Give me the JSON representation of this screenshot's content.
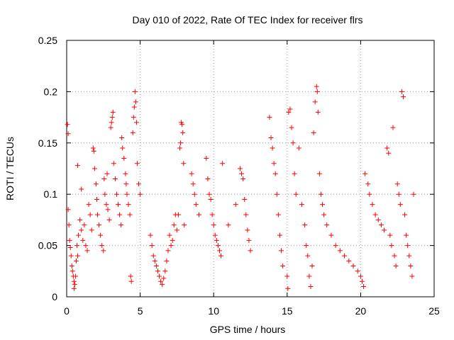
{
  "chart_data": {
    "type": "scatter",
    "title": "Day 010 of 2022, Rate Of TEC Index for receiver flrs",
    "xlabel": "GPS time / hours",
    "ylabel": "ROTI / TECUs",
    "xlim": [
      0,
      25
    ],
    "ylim": [
      0,
      0.25
    ],
    "xticks": [
      0,
      5,
      10,
      15,
      20,
      25
    ],
    "xtick_labels": [
      "0",
      "5",
      "10",
      "15",
      "20",
      "25"
    ],
    "yticks": [
      0,
      0.05,
      0.1,
      0.15,
      0.2,
      0.25
    ],
    "ytick_labels": [
      "0",
      "0.05",
      "0.1",
      "0.15",
      "0.2",
      "0.25"
    ],
    "grid": true,
    "marker": "plus",
    "color": "#ff0000",
    "series": [
      {
        "name": "ROTI",
        "points": [
          [
            0.05,
            0.168
          ],
          [
            0.1,
            0.159
          ],
          [
            0.1,
            0.085
          ],
          [
            0.15,
            0.07
          ],
          [
            0.2,
            0.055
          ],
          [
            0.25,
            0.048
          ],
          [
            0.3,
            0.04
          ],
          [
            0.35,
            0.03
          ],
          [
            0.4,
            0.025
          ],
          [
            0.45,
            0.02
          ],
          [
            0.5,
            0.015
          ],
          [
            0.5,
            0.008
          ],
          [
            0.55,
            0.012
          ],
          [
            0.6,
            0.02
          ],
          [
            0.65,
            0.035
          ],
          [
            0.7,
            0.05
          ],
          [
            0.75,
            0.04
          ],
          [
            0.75,
            0.128
          ],
          [
            0.8,
            0.06
          ],
          [
            0.9,
            0.075
          ],
          [
            1.0,
            0.065
          ],
          [
            1.0,
            0.105
          ],
          [
            1.1,
            0.055
          ],
          [
            1.2,
            0.07
          ],
          [
            1.3,
            0.05
          ],
          [
            1.4,
            0.045
          ],
          [
            1.5,
            0.09
          ],
          [
            1.6,
            0.08
          ],
          [
            1.7,
            0.065
          ],
          [
            1.8,
            0.145
          ],
          [
            1.85,
            0.142
          ],
          [
            1.9,
            0.125
          ],
          [
            2.0,
            0.11
          ],
          [
            2.05,
            0.095
          ],
          [
            2.1,
            0.08
          ],
          [
            2.2,
            0.07
          ],
          [
            2.3,
            0.06
          ],
          [
            2.4,
            0.05
          ],
          [
            2.5,
            0.045
          ],
          [
            2.55,
            0.115
          ],
          [
            2.6,
            0.1
          ],
          [
            2.7,
            0.09
          ],
          [
            2.75,
            0.12
          ],
          [
            2.8,
            0.085
          ],
          [
            2.9,
            0.075
          ],
          [
            3.0,
            0.165
          ],
          [
            3.05,
            0.17
          ],
          [
            3.1,
            0.175
          ],
          [
            3.15,
            0.18
          ],
          [
            3.2,
            0.13
          ],
          [
            3.3,
            0.115
          ],
          [
            3.4,
            0.1
          ],
          [
            3.5,
            0.09
          ],
          [
            3.6,
            0.08
          ],
          [
            3.7,
            0.07
          ],
          [
            3.75,
            0.155
          ],
          [
            3.8,
            0.145
          ],
          [
            3.9,
            0.135
          ],
          [
            4.0,
            0.12
          ],
          [
            4.05,
            0.11
          ],
          [
            4.1,
            0.1
          ],
          [
            4.2,
            0.09
          ],
          [
            4.3,
            0.08
          ],
          [
            4.35,
            0.02
          ],
          [
            4.4,
            0.015
          ],
          [
            4.5,
            0.16
          ],
          [
            4.55,
            0.175
          ],
          [
            4.6,
            0.185
          ],
          [
            4.65,
            0.2
          ],
          [
            4.7,
            0.19
          ],
          [
            4.75,
            0.17
          ],
          [
            4.8,
            0.13
          ],
          [
            4.9,
            0.11
          ],
          [
            5.0,
            0.1
          ],
          [
            5.7,
            0.06
          ],
          [
            5.8,
            0.05
          ],
          [
            5.9,
            0.04
          ],
          [
            6.0,
            0.035
          ],
          [
            6.1,
            0.03
          ],
          [
            6.2,
            0.025
          ],
          [
            6.3,
            0.02
          ],
          [
            6.4,
            0.015
          ],
          [
            6.5,
            0.012
          ],
          [
            6.6,
            0.018
          ],
          [
            6.7,
            0.025
          ],
          [
            6.8,
            0.035
          ],
          [
            6.9,
            0.045
          ],
          [
            7.0,
            0.06
          ],
          [
            7.1,
            0.05
          ],
          [
            7.2,
            0.055
          ],
          [
            7.3,
            0.07
          ],
          [
            7.4,
            0.08
          ],
          [
            7.5,
            0.065
          ],
          [
            7.6,
            0.08
          ],
          [
            7.7,
            0.145
          ],
          [
            7.75,
            0.15
          ],
          [
            7.8,
            0.17
          ],
          [
            7.85,
            0.168
          ],
          [
            7.9,
            0.16
          ],
          [
            7.95,
            0.13
          ],
          [
            8.0,
            0.07
          ],
          [
            8.5,
            0.12
          ],
          [
            8.6,
            0.11
          ],
          [
            8.7,
            0.1
          ],
          [
            8.8,
            0.09
          ],
          [
            9.0,
            0.08
          ],
          [
            9.5,
            0.135
          ],
          [
            9.6,
            0.115
          ],
          [
            9.7,
            0.1
          ],
          [
            9.8,
            0.095
          ],
          [
            9.9,
            0.08
          ],
          [
            10.0,
            0.07
          ],
          [
            10.1,
            0.06
          ],
          [
            10.2,
            0.055
          ],
          [
            10.3,
            0.05
          ],
          [
            10.4,
            0.045
          ],
          [
            10.5,
            0.04
          ],
          [
            10.6,
            0.13
          ],
          [
            11.0,
            0.07
          ],
          [
            11.5,
            0.09
          ],
          [
            11.8,
            0.125
          ],
          [
            11.9,
            0.12
          ],
          [
            12.0,
            0.115
          ],
          [
            12.1,
            0.095
          ],
          [
            12.2,
            0.08
          ],
          [
            12.3,
            0.065
          ],
          [
            12.4,
            0.055
          ],
          [
            12.5,
            0.045
          ],
          [
            13.8,
            0.175
          ],
          [
            13.9,
            0.155
          ],
          [
            14.0,
            0.145
          ],
          [
            14.1,
            0.13
          ],
          [
            14.2,
            0.12
          ],
          [
            14.3,
            0.1
          ],
          [
            14.4,
            0.08
          ],
          [
            14.5,
            0.06
          ],
          [
            14.6,
            0.045
          ],
          [
            14.7,
            0.03
          ],
          [
            15.0,
            0.02
          ],
          [
            15.05,
            0.008
          ],
          [
            15.1,
            0.18
          ],
          [
            15.2,
            0.183
          ],
          [
            15.3,
            0.165
          ],
          [
            15.4,
            0.15
          ],
          [
            15.5,
            0.12
          ],
          [
            15.6,
            0.1
          ],
          [
            15.8,
            0.145
          ],
          [
            16.0,
            0.09
          ],
          [
            16.2,
            0.07
          ],
          [
            16.3,
            0.05
          ],
          [
            16.4,
            0.04
          ],
          [
            16.5,
            0.02
          ],
          [
            16.6,
            0.01
          ],
          [
            16.7,
            0.03
          ],
          [
            16.8,
            0.16
          ],
          [
            16.9,
            0.19
          ],
          [
            17.0,
            0.205
          ],
          [
            17.05,
            0.2
          ],
          [
            17.1,
            0.18
          ],
          [
            17.2,
            0.12
          ],
          [
            17.3,
            0.1
          ],
          [
            17.4,
            0.09
          ],
          [
            17.5,
            0.08
          ],
          [
            17.7,
            0.07
          ],
          [
            18.0,
            0.06
          ],
          [
            18.3,
            0.05
          ],
          [
            18.6,
            0.045
          ],
          [
            18.9,
            0.04
          ],
          [
            19.2,
            0.035
          ],
          [
            19.5,
            0.03
          ],
          [
            19.8,
            0.025
          ],
          [
            20.0,
            0.02
          ],
          [
            20.1,
            0.015
          ],
          [
            20.2,
            0.01
          ],
          [
            20.3,
            0.12
          ],
          [
            20.5,
            0.11
          ],
          [
            20.6,
            0.1
          ],
          [
            20.8,
            0.09
          ],
          [
            21.0,
            0.08
          ],
          [
            21.2,
            0.075
          ],
          [
            21.4,
            0.07
          ],
          [
            21.6,
            0.065
          ],
          [
            21.8,
            0.145
          ],
          [
            21.9,
            0.14
          ],
          [
            22.0,
            0.06
          ],
          [
            22.1,
            0.05
          ],
          [
            22.2,
            0.165
          ],
          [
            22.3,
            0.04
          ],
          [
            22.4,
            0.03
          ],
          [
            22.5,
            0.11
          ],
          [
            22.6,
            0.1
          ],
          [
            22.7,
            0.09
          ],
          [
            22.8,
            0.2
          ],
          [
            22.9,
            0.195
          ],
          [
            23.0,
            0.08
          ],
          [
            23.1,
            0.06
          ],
          [
            23.2,
            0.05
          ],
          [
            23.3,
            0.04
          ],
          [
            23.4,
            0.03
          ],
          [
            23.5,
            0.02
          ],
          [
            23.6,
            0.1
          ]
        ]
      }
    ]
  }
}
